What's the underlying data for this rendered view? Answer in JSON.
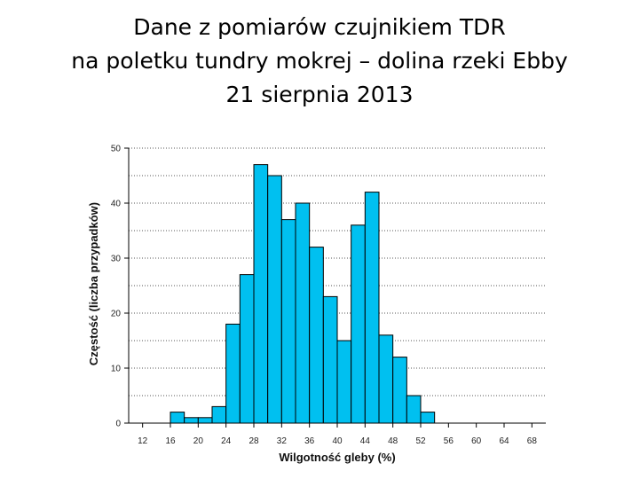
{
  "title": {
    "line1": "Dane z pomiarów czujnikiem TDR",
    "line2": "na poletku tundry mokrej – dolina rzeki Ebby",
    "line3": "21 sierpnia 2013"
  },
  "chart_data": {
    "type": "bar",
    "title": "Dane z pomiarów czujnikiem TDR na poletku tundry mokrej – dolina rzeki Ebby 21 sierpnia 2013",
    "xlabel": "Wilgotność gleby (%)",
    "ylabel": "Częstość (liczba przypadków)",
    "bin_width": 2,
    "bin_starts": [
      14,
      16,
      18,
      20,
      22,
      24,
      26,
      28,
      30,
      32,
      34,
      36,
      38,
      40,
      42,
      44,
      46,
      48,
      50,
      52,
      54,
      56,
      58,
      60
    ],
    "values": [
      0,
      2,
      1,
      1,
      3,
      18,
      27,
      47,
      45,
      37,
      40,
      32,
      23,
      15,
      36,
      42,
      16,
      12,
      5,
      2,
      0,
      0,
      0,
      0
    ],
    "xlim": [
      10,
      70
    ],
    "ylim": [
      0,
      50
    ],
    "xticks": [
      12,
      16,
      20,
      24,
      28,
      32,
      36,
      40,
      44,
      48,
      52,
      56,
      60,
      64,
      68
    ],
    "yticks": [
      0,
      10,
      20,
      30,
      40,
      50
    ],
    "grid": "horizontal dotted",
    "bar_color": "#00c0f0",
    "bar_edge_color": "#000000"
  }
}
